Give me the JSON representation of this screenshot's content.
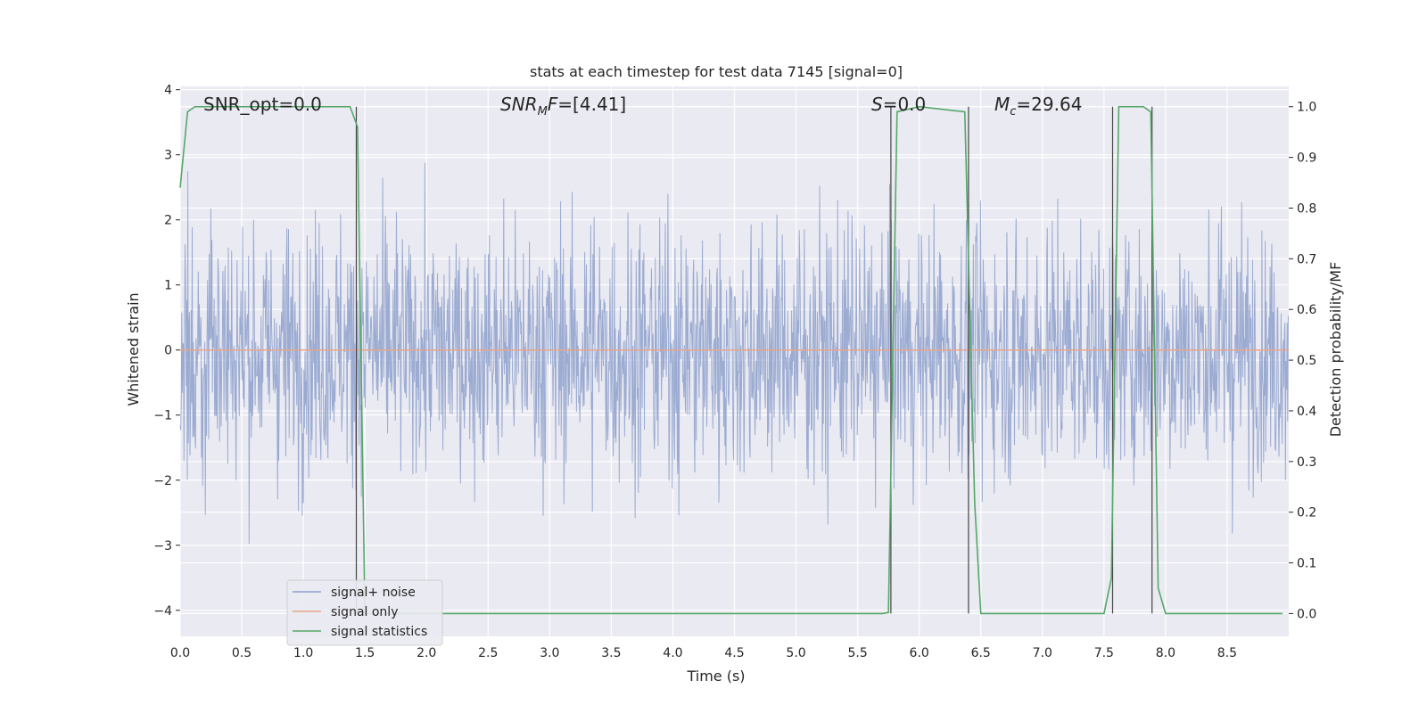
{
  "chart_data": {
    "type": "line",
    "title": "stats at each timestep for test data 7145 [signal=0]",
    "xlabel": "Time (s)",
    "ylabel": "Whitened strain",
    "ylabel_right": "Detection probability/MF",
    "xlim": [
      0.0,
      9.0
    ],
    "ylim": [
      -4.4,
      4.05
    ],
    "ylim_right": [
      -0.045,
      1.04
    ],
    "x_ticks": [
      0.0,
      0.5,
      1.0,
      1.5,
      2.0,
      2.5,
      3.0,
      3.5,
      4.0,
      4.5,
      5.0,
      5.5,
      6.0,
      6.5,
      7.0,
      7.5,
      8.0,
      8.5
    ],
    "y_ticks": [
      -4,
      -3,
      -2,
      -1,
      0,
      1,
      2,
      3,
      4
    ],
    "y_ticks_right": [
      0.0,
      0.1,
      0.2,
      0.3,
      0.4,
      0.5,
      0.6,
      0.7,
      0.8,
      0.9,
      1.0
    ],
    "grid": true,
    "legend_position": "lower-left",
    "annotations": [
      "SNR_opt=0.0",
      "SNR_MF=[4.41]",
      "S=0.0",
      "M_c=29.64"
    ],
    "series": [
      {
        "name": "signal+ noise",
        "color": "#8da0cb",
        "axis": "left",
        "description_values": {
          "approx_min": -4.0,
          "approx_max": 3.7,
          "sample_rate_hz": 225
        }
      },
      {
        "name": "signal only",
        "color": "#e8a58a",
        "axis": "left",
        "x": [
          0.0,
          9.0
        ],
        "y": [
          0.0,
          0.0
        ]
      },
      {
        "name": "signal statistics",
        "color": "#55a868",
        "axis": "right",
        "x": [
          0.0,
          0.06,
          0.12,
          0.5,
          1.0,
          1.38,
          1.44,
          1.5,
          1.55,
          2.0,
          3.0,
          4.0,
          5.0,
          5.7,
          5.75,
          5.82,
          6.0,
          6.37,
          6.45,
          6.5,
          7.0,
          7.5,
          7.56,
          7.62,
          7.82,
          7.88,
          7.94,
          8.0,
          8.5,
          8.95
        ],
        "y": [
          0.84,
          0.99,
          1.0,
          1.0,
          1.0,
          1.0,
          0.96,
          0.0,
          0.0,
          0.0,
          0.0,
          0.0,
          0.0,
          0.0,
          0.002,
          0.99,
          1.0,
          0.99,
          0.22,
          0.0,
          0.0,
          0.0,
          0.07,
          1.0,
          1.0,
          0.99,
          0.05,
          0.0,
          0.0,
          0.0
        ]
      }
    ],
    "vlines": [
      1.43,
      5.77,
      6.4,
      7.57,
      7.89
    ]
  }
}
